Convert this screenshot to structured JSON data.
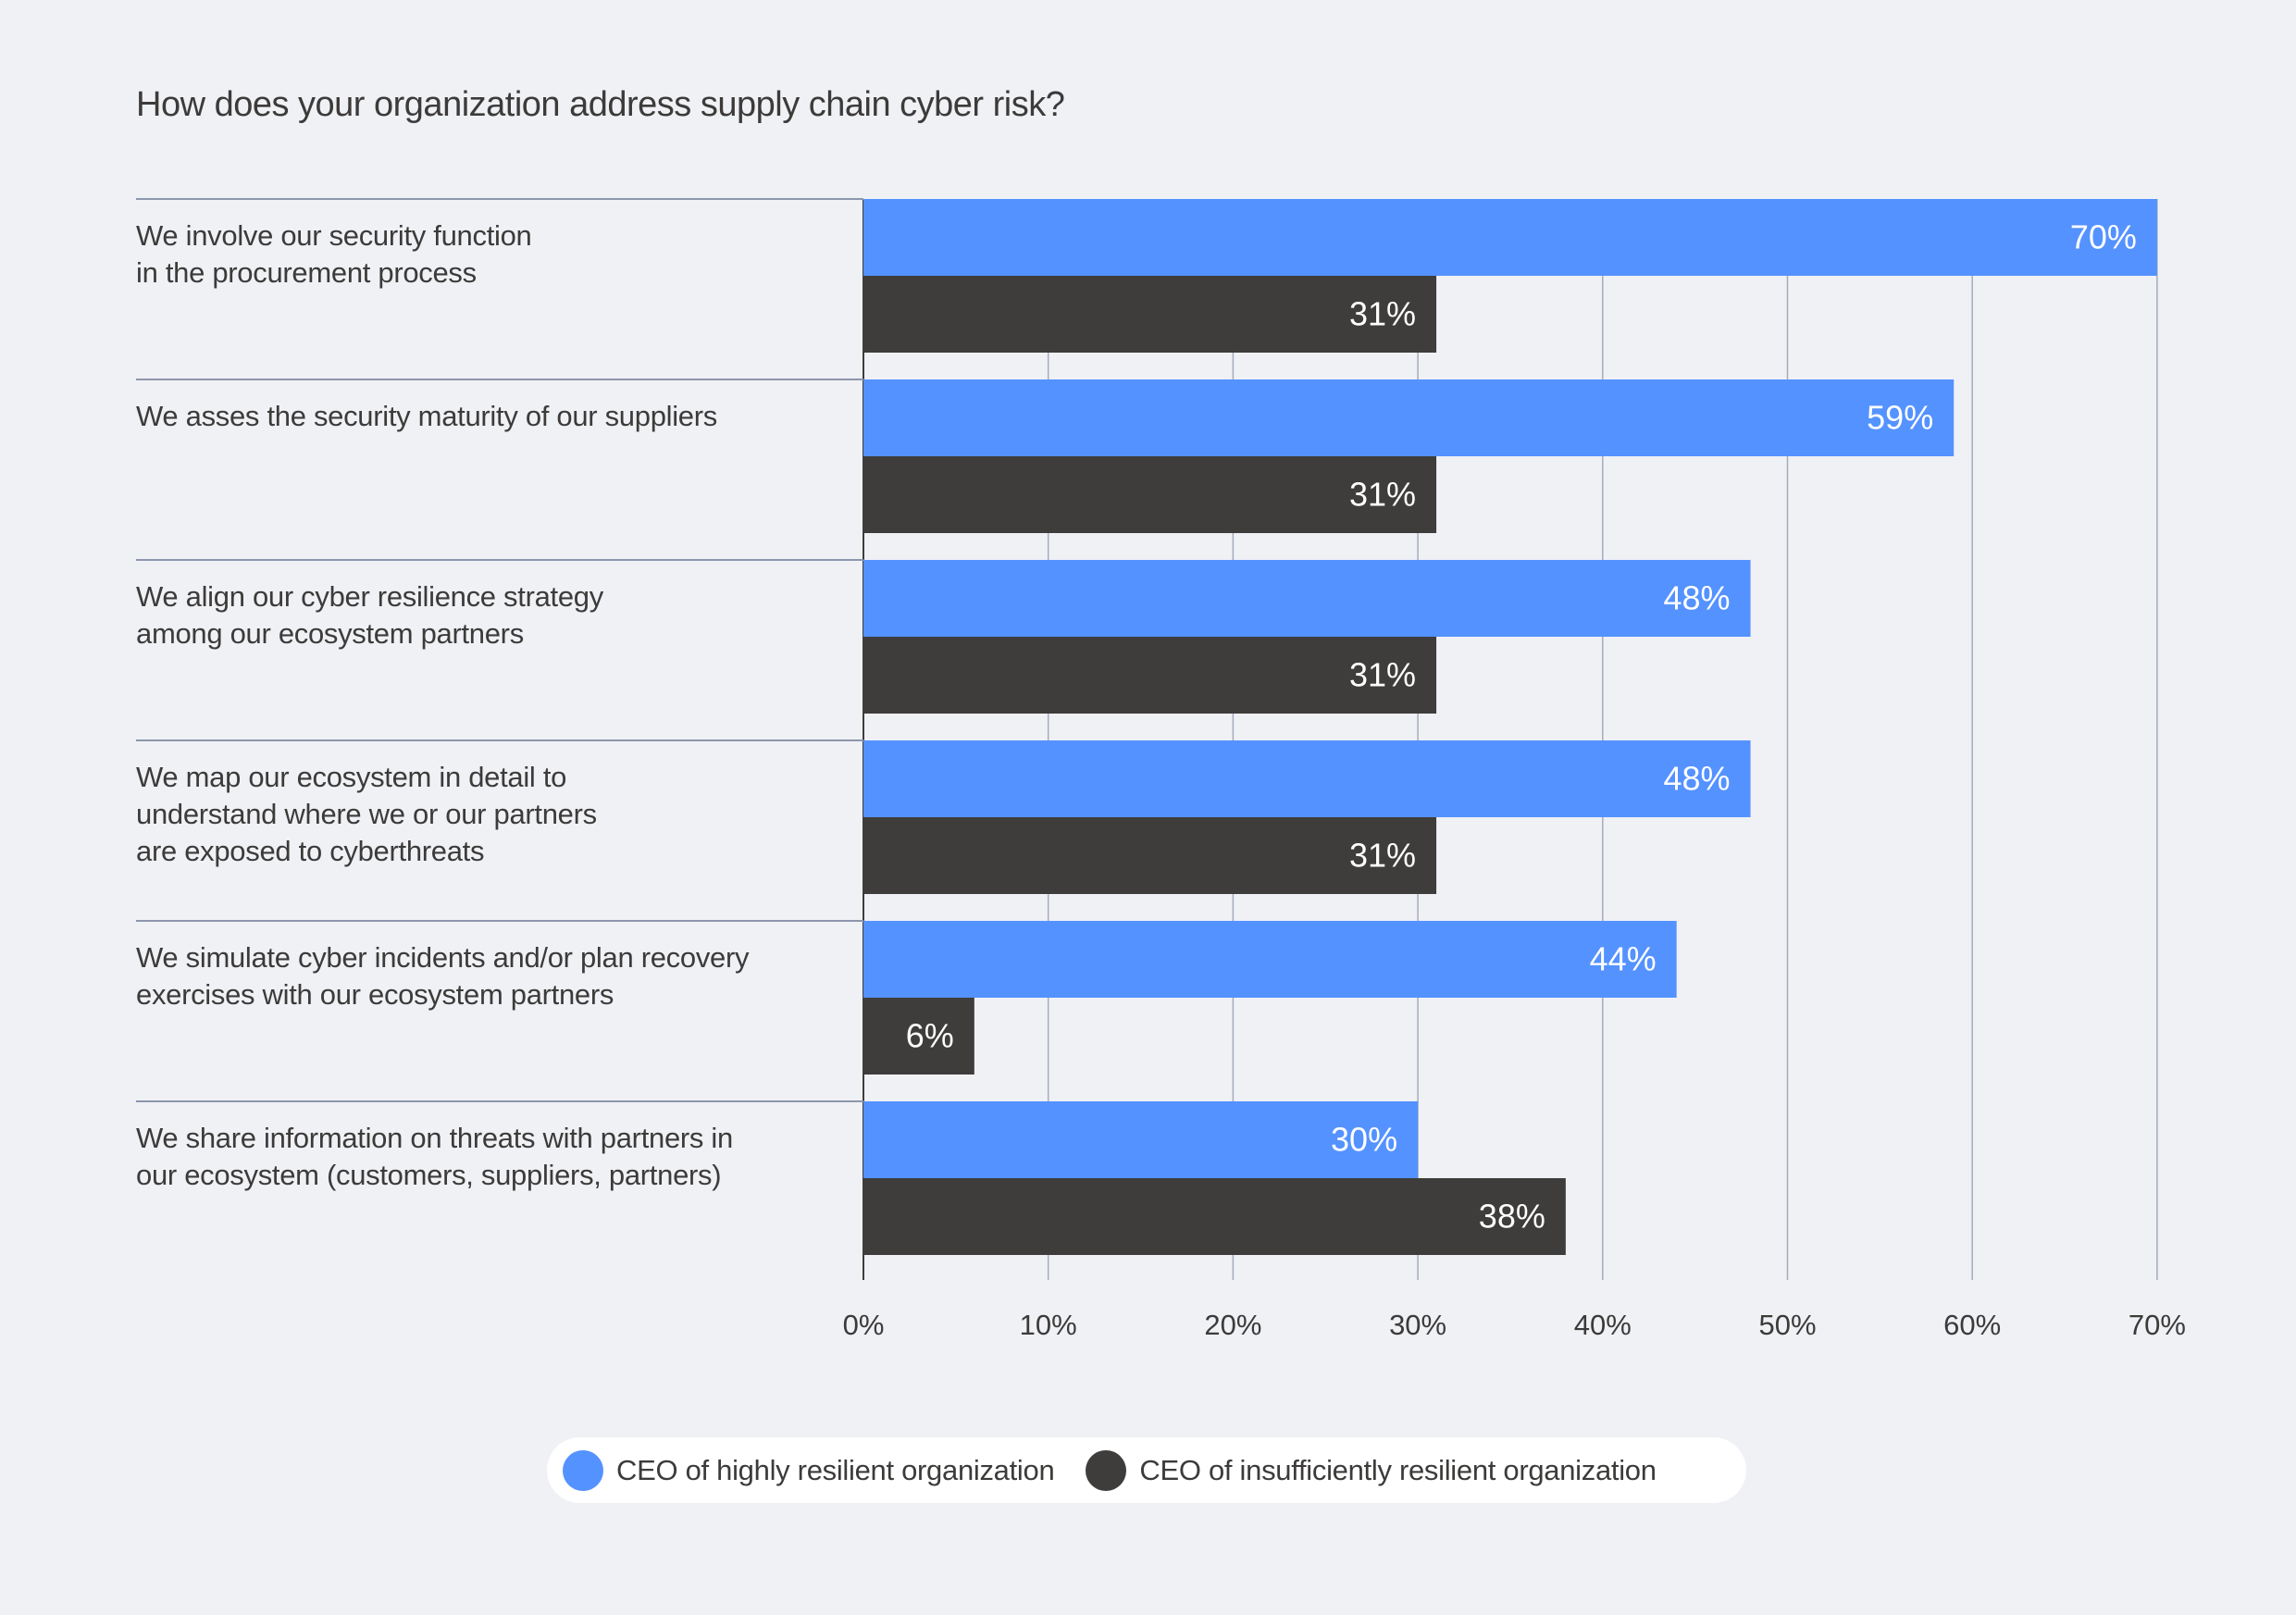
{
  "chart_data": {
    "type": "bar",
    "orientation": "horizontal",
    "title": "How does your organization address supply chain cyber risk?",
    "xlabel": "",
    "ylabel": "",
    "xlim": [
      0,
      70
    ],
    "x_ticks": [
      "0%",
      "10%",
      "20%",
      "30%",
      "40%",
      "50%",
      "60%",
      "70%"
    ],
    "x_tick_values": [
      0,
      10,
      20,
      30,
      40,
      50,
      60,
      70
    ],
    "grid": true,
    "legend_position": "bottom-center",
    "categories": [
      "We involve our security function\nin the procurement process",
      "We asses the security maturity of our suppliers",
      "We align our cyber resilience strategy\namong our ecosystem partners",
      "We map our ecosystem in detail to\nunderstand where we or our partners\nare exposed to cyberthreats",
      "We simulate cyber incidents and/or plan recovery\nexercises with our ecosystem partners",
      "We share information on threats with partners in\nour ecosystem (customers, suppliers, partners)"
    ],
    "series": [
      {
        "name": "CEO of highly resilient organization",
        "color": "#5492ff",
        "values": [
          70,
          59,
          48,
          48,
          44,
          30
        ],
        "labels": [
          "70%",
          "59%",
          "48%",
          "48%",
          "44%",
          "30%"
        ]
      },
      {
        "name": "CEO of insufficiently resilient organization",
        "color": "#3e3d3b",
        "values": [
          31,
          31,
          31,
          31,
          6,
          38
        ],
        "labels": [
          "31%",
          "31%",
          "31%",
          "31%",
          "6%",
          "38%"
        ]
      }
    ]
  }
}
